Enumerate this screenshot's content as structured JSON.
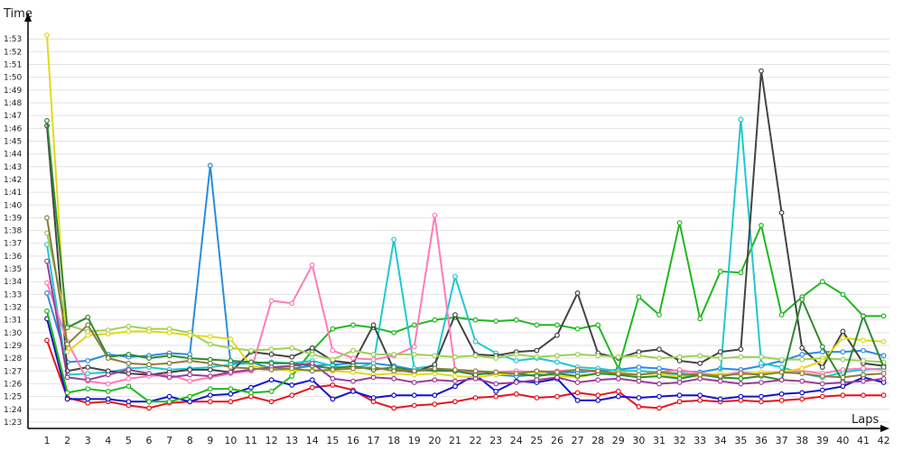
{
  "chart_data": {
    "type": "line",
    "ylabel": "Time",
    "xlabel": "Laps",
    "ylim": [
      "1:22.5",
      "1:54.5"
    ],
    "y_ticks": [
      "1:23",
      "1:24",
      "1:25",
      "1:26",
      "1:27",
      "1:28",
      "1:29",
      "1:30",
      "1:31",
      "1:32",
      "1:33",
      "1:34",
      "1:35",
      "1:36",
      "1:37",
      "1:38",
      "1:39",
      "1:40",
      "1:41",
      "1:42",
      "1:43",
      "1:44",
      "1:45",
      "1:46",
      "1:47",
      "1:48",
      "1:49",
      "1:50",
      "1:51",
      "1:52",
      "1:53"
    ],
    "x_ticks": [
      1,
      2,
      3,
      4,
      5,
      6,
      7,
      8,
      9,
      10,
      11,
      12,
      13,
      14,
      15,
      16,
      17,
      18,
      19,
      20,
      21,
      22,
      23,
      24,
      25,
      26,
      27,
      28,
      29,
      30,
      31,
      32,
      33,
      34,
      35,
      36,
      37,
      38,
      39,
      40,
      41,
      42
    ],
    "grid": "horizontal",
    "legend": "none",
    "series": [
      {
        "color": "#e8141b",
        "values": [
          "1:29.4",
          "1:24.9",
          "1:24.5",
          "1:24.6",
          "1:24.3",
          "1:24.1",
          "1:24.5",
          "1:24.6",
          "1:24.6",
          "1:24.6",
          "1:25.0",
          "1:24.6",
          "1:25.1",
          "1:25.7",
          "1:25.9",
          "1:25.5",
          "1:24.6",
          "1:24.1",
          "1:24.3",
          "1:24.4",
          "1:24.6",
          "1:24.9",
          "1:25.0",
          "1:25.2",
          "1:24.9",
          "1:25.0",
          "1:25.3",
          "1:25.1",
          "1:25.4",
          "1:24.2",
          "1:24.1",
          "1:24.6",
          "1:24.7",
          "1:24.6",
          "1:24.7",
          "1:24.6",
          "1:24.7",
          "1:24.8",
          "1:25.0",
          "1:25.1",
          "1:25.1",
          "1:25.1"
        ]
      },
      {
        "color": "#1414c8",
        "values": [
          "1:31.1",
          "1:24.8",
          "1:24.8",
          "1:24.8",
          "1:24.6",
          "1:24.6",
          "1:25.0",
          "1:24.6",
          "1:25.1",
          "1:25.2",
          "1:25.7",
          "1:26.3",
          "1:25.9",
          "1:26.3",
          "1:24.8",
          "1:25.4",
          "1:24.9",
          "1:25.1",
          "1:25.1",
          "1:25.1",
          "1:25.8",
          "1:26.7",
          "1:25.4",
          "1:26.2",
          "1:26.1",
          "1:26.4",
          "1:24.7",
          "1:24.7",
          "1:25.0",
          "1:24.9",
          "1:25.0",
          "1:25.1",
          "1:25.1",
          "1:24.8",
          "1:25.0",
          "1:25.0",
          "1:25.2",
          "1:25.3",
          "1:25.5",
          "1:25.8",
          "1:26.5",
          "1:26.1"
        ]
      },
      {
        "color": "#1fb81f",
        "values": [
          "1:31.7",
          "1:25.3",
          "1:25.6",
          "1:25.4",
          "1:25.8",
          "1:24.6",
          "1:24.6",
          "1:25.0",
          "1:25.6",
          "1:25.6",
          "1:25.3",
          "1:25.4",
          "1:26.6",
          "1:28.6",
          "1:30.3",
          "1:30.6",
          "1:30.4",
          "1:30.0",
          "1:30.6",
          "1:31.0",
          "1:31.2",
          "1:31.0",
          "1:30.9",
          "1:31.0",
          "1:30.6",
          "1:30.6",
          "1:30.3",
          "1:30.6",
          "1:27.2",
          "1:32.8",
          "1:31.4",
          "1:38.6",
          "1:31.1",
          "1:34.8",
          "1:34.7",
          "1:38.4",
          "1:31.4",
          "1:32.8",
          "1:34.0",
          "1:33.0",
          "1:31.3",
          "1:31.3"
        ]
      },
      {
        "color": "#2a8ce0",
        "values": [
          "1:33.1",
          "1:27.7",
          "1:27.8",
          "1:28.3",
          "1:28.1",
          "1:28.2",
          "1:28.4",
          "1:28.3",
          "1:43.1",
          "1:27.6",
          "1:27.7",
          "1:27.2",
          "1:27.2",
          "1:27.4",
          "1:27.5",
          "1:27.6",
          "1:27.6",
          "1:27.4",
          "1:27.1",
          "1:27.0",
          "1:27.0",
          "1:26.9",
          "1:26.7",
          "1:26.6",
          "1:26.7",
          "1:26.9",
          "1:26.9",
          "1:27.0",
          "1:27.1",
          "1:27.3",
          "1:27.2",
          "1:27.0",
          "1:26.9",
          "1:27.2",
          "1:27.1",
          "1:27.4",
          "1:27.8",
          "1:28.3",
          "1:28.5",
          "1:28.5",
          "1:28.6",
          "1:28.2"
        ]
      },
      {
        "color": "#20c8d0",
        "values": [
          "1:36.9",
          "1:26.7",
          "1:26.8",
          "1:26.9",
          "1:27.2",
          "1:27.3",
          "1:27.1",
          "1:27.2",
          "1:27.3",
          "1:27.5",
          "1:27.6",
          "1:27.7",
          "1:27.6",
          "1:27.8",
          "1:27.4",
          "1:27.2",
          "1:27.6",
          "1:37.3",
          "1:27.2",
          "1:27.4",
          "1:34.4",
          "1:29.3",
          "1:28.4",
          "1:27.8",
          "1:28.0",
          "1:27.7",
          "1:27.3",
          "1:27.2",
          "1:27.0",
          "1:27.0",
          "1:26.9",
          "1:26.7",
          "1:26.6",
          "1:26.8",
          "1:46.7",
          "1:27.6",
          "1:27.3",
          "1:26.8",
          "1:26.5",
          "1:26.9",
          "1:27.1",
          "1:27.2"
        ]
      },
      {
        "color": "#444444",
        "values": [
          "1:46.2",
          "1:27.0",
          "1:27.3",
          "1:27.0",
          "1:26.8",
          "1:26.7",
          "1:26.9",
          "1:27.1",
          "1:27.1",
          "1:26.9",
          "1:28.5",
          "1:28.3",
          "1:28.1",
          "1:28.8",
          "1:27.8",
          "1:27.6",
          "1:30.6",
          "1:27.1",
          "1:26.9",
          "1:27.5",
          "1:31.4",
          "1:28.3",
          "1:28.2",
          "1:28.5",
          "1:28.6",
          "1:29.8",
          "1:33.1",
          "1:28.4",
          "1:28.0",
          "1:28.5",
          "1:28.7",
          "1:27.8",
          "1:27.6",
          "1:28.5",
          "1:28.7",
          "1:50.5",
          "1:39.4",
          "1:28.8",
          "1:27.3",
          "1:30.1",
          "1:27.6",
          "1:27.4"
        ]
      },
      {
        "color": "#ff7bb8",
        "values": [
          "1:33.9",
          "1:29.3",
          "1:26.2",
          "1:26.0",
          "1:26.4",
          "1:26.6",
          "1:26.7",
          "1:26.2",
          "1:26.5",
          "1:26.8",
          "1:27.0",
          "1:32.5",
          "1:32.3",
          "1:35.3",
          "1:28.6",
          "1:28.0",
          "1:27.9",
          "1:28.2",
          "1:28.9",
          "1:39.2",
          "1:27.0",
          "1:26.8",
          "1:26.9",
          "1:27.0",
          "1:26.9",
          "1:27.0",
          "1:27.1",
          "1:26.9",
          "1:26.8",
          "1:26.7",
          "1:26.9",
          "1:27.1",
          "1:26.8",
          "1:26.7",
          "1:26.9",
          "1:26.8",
          "1:26.9",
          "1:27.0",
          "1:26.8",
          "1:27.1",
          "1:27.2",
          "1:27.1"
        ]
      },
      {
        "color": "#9ecf5a",
        "values": [
          "1:37.8",
          "1:30.6",
          "1:30.1",
          "1:30.2",
          "1:30.5",
          "1:30.3",
          "1:30.3",
          "1:30.0",
          "1:29.1",
          "1:28.8",
          "1:28.6",
          "1:28.7",
          "1:28.8",
          "1:28.3",
          "1:27.9",
          "1:28.6",
          "1:28.3",
          "1:28.3",
          "1:28.3",
          "1:28.2",
          "1:28.1",
          "1:28.2",
          "1:28.0",
          "1:28.3",
          "1:28.1",
          "1:28.2",
          "1:28.3",
          "1:28.2",
          "1:28.1",
          "1:28.2",
          "1:28.0",
          "1:28.1",
          "1:28.2",
          "1:28.0",
          "1:28.1",
          "1:28.1",
          "1:27.9",
          "1:27.9",
          "1:28.0",
          "1:27.9",
          "1:27.8",
          "1:27.7"
        ]
      },
      {
        "color": "#e3d81a",
        "values": [
          "1:53.3",
          "1:28.5",
          "1:29.8",
          "1:29.9",
          "1:30.1",
          "1:30.1",
          "1:30.0",
          "1:29.8",
          "1:29.7",
          "1:29.5",
          "1:27.4",
          "1:27.2",
          "1:27.0",
          "1:27.1",
          "1:27.0",
          "1:26.9",
          "1:26.7",
          "1:26.8",
          "1:26.7",
          "1:26.8",
          "1:26.6",
          "1:26.5",
          "1:26.7",
          "1:26.8",
          "1:26.9",
          "1:26.6",
          "1:26.5",
          "1:26.8",
          "1:26.9",
          "1:26.7",
          "1:26.8",
          "1:26.5",
          "1:26.6",
          "1:26.8",
          "1:26.7",
          "1:26.9",
          "1:26.9",
          "1:27.2",
          "1:27.8",
          "1:29.6",
          "1:29.4",
          "1:29.3"
        ]
      },
      {
        "color": "#2e8b2e",
        "values": [
          "1:46.6",
          "1:30.4",
          "1:31.2",
          "1:28.1",
          "1:28.3",
          "1:28.0",
          "1:28.2",
          "1:28.0",
          "1:27.9",
          "1:27.8",
          "1:27.7",
          "1:27.6",
          "1:27.6",
          "1:27.4",
          "1:27.2",
          "1:27.4",
          "1:27.1",
          "1:27.3",
          "1:27.0",
          "1:27.1",
          "1:27.0",
          "1:26.7",
          "1:26.9",
          "1:26.8",
          "1:26.6",
          "1:26.8",
          "1:26.6",
          "1:26.8",
          "1:26.7",
          "1:26.5",
          "1:26.6",
          "1:26.4",
          "1:26.7",
          "1:26.5",
          "1:26.4",
          "1:26.6",
          "1:26.3",
          "1:32.6",
          "1:28.9",
          "1:26.2",
          "1:31.3",
          "1:27.3"
        ]
      },
      {
        "color": "#9a3d9a",
        "values": [
          "1:35.6",
          "1:26.5",
          "1:26.3",
          "1:26.7",
          "1:27.1",
          "1:26.8",
          "1:26.5",
          "1:26.7",
          "1:26.6",
          "1:26.9",
          "1:27.1",
          "1:27.3",
          "1:27.4",
          "1:27.6",
          "1:26.4",
          "1:26.2",
          "1:26.5",
          "1:26.4",
          "1:26.1",
          "1:26.3",
          "1:26.2",
          "1:26.4",
          "1:26.0",
          "1:26.1",
          "1:26.3",
          "1:26.5",
          "1:26.1",
          "1:26.3",
          "1:26.4",
          "1:26.2",
          "1:26.0",
          "1:26.1",
          "1:26.4",
          "1:26.2",
          "1:26.0",
          "1:26.1",
          "1:26.3",
          "1:26.2",
          "1:26.0",
          "1:26.1",
          "1:26.2",
          "1:26.4"
        ]
      },
      {
        "color": "#8b7d3a",
        "values": [
          "1:39.0",
          "1:29.1",
          "1:30.6",
          "1:28.0",
          "1:27.6",
          "1:27.5",
          "1:27.6",
          "1:27.8",
          "1:27.6",
          "1:27.3",
          "1:27.2",
          "1:27.1",
          "1:27.2",
          "1:27.0",
          "1:27.1",
          "1:27.2",
          "1:27.3",
          "1:27.0",
          "1:27.0",
          "1:27.2",
          "1:27.1",
          "1:27.0",
          "1:26.9",
          "1:26.8",
          "1:27.0",
          "1:26.9",
          "1:27.1",
          "1:27.0",
          "1:26.8",
          "1:26.7",
          "1:26.9",
          "1:26.8",
          "1:26.7",
          "1:26.6",
          "1:26.8",
          "1:26.7",
          "1:26.9",
          "1:26.8",
          "1:26.6",
          "1:26.5",
          "1:26.7",
          "1:26.8"
        ]
      }
    ]
  }
}
